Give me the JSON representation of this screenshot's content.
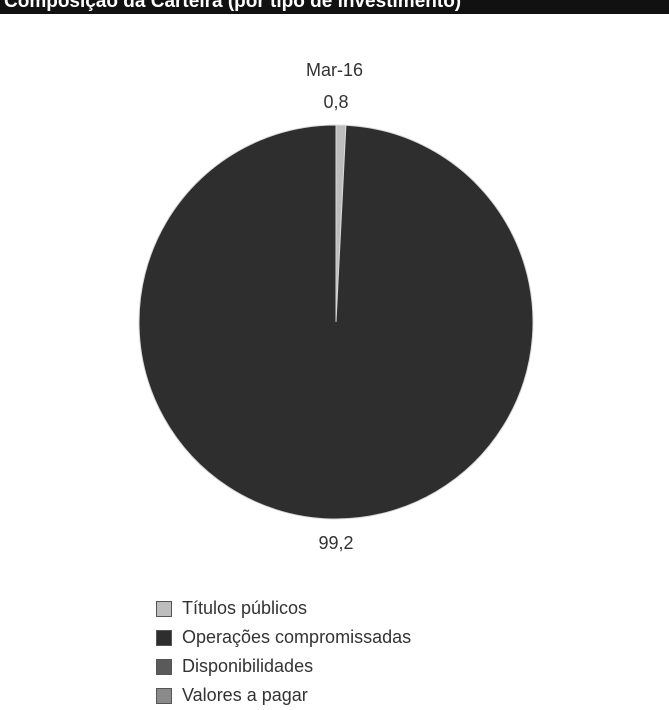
{
  "chart_data": {
    "type": "pie",
    "title": "Composição da Carteira (por tipo de investimento)",
    "subtitle": "Mar-16",
    "slices": [
      {
        "label": "Títulos públicos",
        "value": 0.8,
        "display": "0,8",
        "color": "#bdbdbd"
      },
      {
        "label": "Operações compromissadas",
        "value": 99.2,
        "display": "99,2",
        "color": "#2e2e2e"
      },
      {
        "label": "Disponibilidades",
        "value": 0,
        "display": "",
        "color": "#5a5a5a"
      },
      {
        "label": "Valores a pagar",
        "value": 0,
        "display": "",
        "color": "#8a8a8a"
      }
    ],
    "legend_position": "bottom"
  }
}
